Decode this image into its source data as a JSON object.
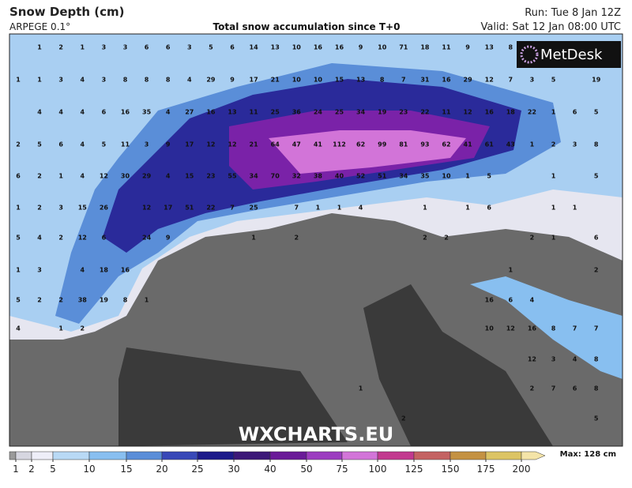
{
  "header": {
    "title": "Snow Depth (cm)",
    "model": "ARPEGE 0.1°",
    "subtitle": "Total snow accumulation since T+0",
    "run": "Run: Tue 8 Jan 12Z",
    "valid": "Valid: Sat 12 Jan 08:00 UTC"
  },
  "logo": "MetDesk",
  "watermark": "WXCHARTS.EU",
  "map_labels": [
    [
      1,
      2,
      1,
      3,
      3,
      6,
      6,
      3,
      5,
      6,
      14,
      13,
      10,
      16,
      16,
      9,
      10,
      71,
      18,
      11,
      9,
      13,
      8
    ],
    [
      1,
      1,
      3,
      4,
      3,
      8,
      8,
      8,
      4,
      29,
      9,
      17,
      21,
      10,
      10,
      15,
      13,
      8,
      7,
      31,
      16,
      29,
      12,
      7,
      3,
      5,
      19
    ],
    [
      4,
      4,
      4,
      6,
      16,
      35,
      4,
      27,
      16,
      13,
      11,
      25,
      36,
      24,
      25,
      34,
      19,
      23,
      22,
      11,
      12,
      16,
      18,
      22,
      1,
      6,
      5
    ],
    [
      2,
      5,
      6,
      4,
      5,
      11,
      3,
      9,
      17,
      12,
      12,
      21,
      64,
      47,
      41,
      112,
      62,
      99,
      81,
      93,
      62,
      41,
      61,
      43,
      1,
      2,
      3,
      8
    ],
    [
      6,
      2,
      1,
      4,
      12,
      30,
      29,
      4,
      15,
      23,
      55,
      34,
      70,
      32,
      38,
      40,
      52,
      51,
      34,
      35,
      10,
      1,
      5,
      1,
      5
    ],
    [
      1,
      2,
      3,
      15,
      26,
      12,
      17,
      51,
      22,
      7,
      25,
      7,
      1,
      1,
      4,
      1,
      1,
      6,
      1,
      1
    ],
    [
      5,
      4,
      2,
      12,
      6,
      24,
      9,
      1,
      2,
      2,
      2,
      2,
      1,
      6
    ],
    [
      1,
      3,
      4,
      18,
      16,
      1,
      2
    ],
    [
      5,
      2,
      2,
      38,
      19,
      8,
      1,
      16,
      6,
      4
    ],
    [
      4,
      1,
      2,
      10,
      12,
      16,
      8,
      7,
      7
    ],
    [
      12,
      3,
      4,
      8
    ],
    [
      1,
      2,
      7,
      6,
      8
    ],
    [
      2,
      5
    ]
  ],
  "colorbar": {
    "ticks": [
      1,
      2,
      5,
      10,
      15,
      20,
      25,
      30,
      40,
      50,
      75,
      100,
      125,
      150,
      175,
      200
    ],
    "colors": [
      "#9a9a9a",
      "#d6d6e0",
      "#eeeef8",
      "#b9d9f5",
      "#88bff0",
      "#5a8ed8",
      "#3848b8",
      "#1c1a8a",
      "#3c1878",
      "#6a1a98",
      "#9c3cc0",
      "#d274d8",
      "#c2398f",
      "#c46262",
      "#c49242",
      "#dcc464",
      "#f4e4a8"
    ],
    "max": "Max: 128 cm"
  }
}
